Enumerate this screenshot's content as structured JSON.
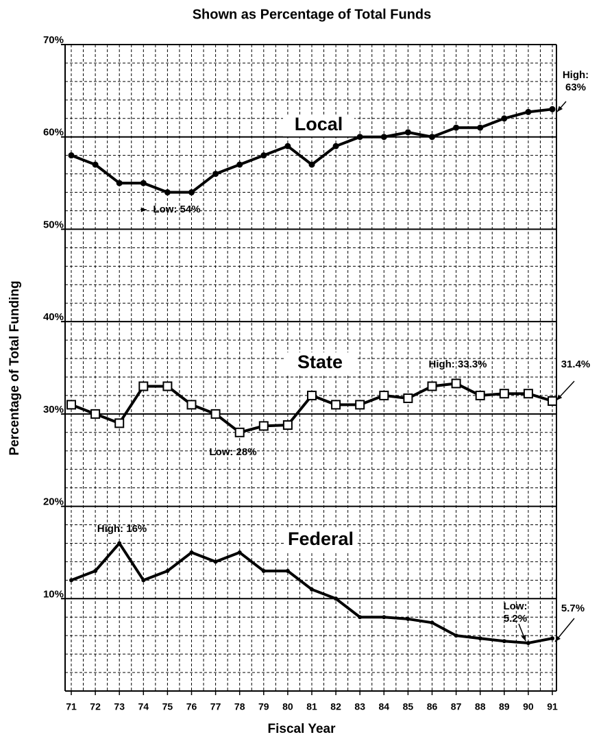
{
  "chart_data": {
    "type": "line",
    "title": "Shown as Percentage of Total Funds",
    "x_label": "Fiscal Year",
    "y_label": "Percentage of Total Funding",
    "categories": [
      "71",
      "72",
      "73",
      "74",
      "75",
      "76",
      "77",
      "78",
      "79",
      "80",
      "81",
      "82",
      "83",
      "84",
      "85",
      "86",
      "87",
      "88",
      "89",
      "90",
      "91"
    ],
    "ylim": [
      0,
      70
    ],
    "yticks": [
      {
        "value": 10,
        "label": "10%"
      },
      {
        "value": 20,
        "label": "20%"
      },
      {
        "value": 30,
        "label": "30%"
      },
      {
        "value": 40,
        "label": "40%"
      },
      {
        "value": 50,
        "label": "50%"
      },
      {
        "value": 60,
        "label": "60%"
      },
      {
        "value": 70,
        "label": "70%"
      }
    ],
    "grid": true,
    "minor_ytick_step": 2,
    "series": [
      {
        "name": "Local",
        "color": "#000000",
        "marker": "circle",
        "values": [
          58,
          57,
          55,
          55,
          54,
          54,
          56,
          57,
          58,
          59,
          57,
          59,
          60,
          60,
          60.5,
          60,
          61,
          61,
          62,
          62.7,
          63
        ]
      },
      {
        "name": "State",
        "color": "#000000",
        "marker": "square",
        "values": [
          31,
          30,
          29,
          33,
          33,
          31,
          30,
          28,
          28.7,
          28.8,
          32,
          31,
          31,
          32,
          31.7,
          33,
          33.3,
          32,
          32.2,
          32.2,
          31.4
        ]
      },
      {
        "name": "Federal",
        "color": "#000000",
        "marker": "dot",
        "values": [
          12,
          13,
          16,
          12,
          13,
          15,
          14,
          15,
          13,
          13,
          11,
          10,
          8,
          8,
          7.8,
          7.4,
          6,
          5.7,
          5.4,
          5.2,
          5.7
        ]
      }
    ],
    "annotations": [
      "High: 63%",
      "Low: 54%",
      "High: 33.3%",
      "31.4%",
      "Low: 28%",
      "High: 16%",
      "Low: 5.2%",
      "5.7%"
    ]
  }
}
